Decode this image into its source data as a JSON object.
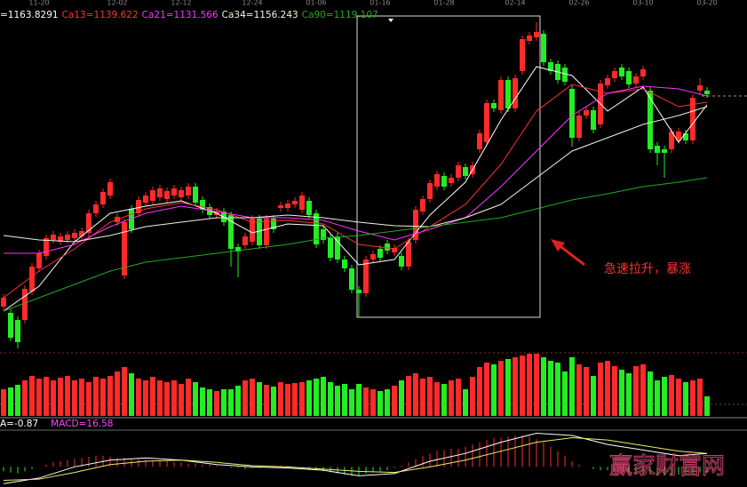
{
  "chart_data": [
    {
      "type": "candlestick",
      "categories": [
        null,
        null,
        null,
        null,
        null,
        "11-20",
        null,
        null,
        null,
        null,
        null,
        null,
        null,
        null,
        null,
        null,
        "12-02",
        null,
        null,
        null,
        null,
        null,
        null,
        null,
        null,
        "12-12",
        null,
        null,
        null,
        null,
        null,
        null,
        null,
        null,
        null,
        "12-24",
        null,
        null,
        null,
        null,
        null,
        null,
        null,
        null,
        "01-06",
        null,
        null,
        null,
        null,
        null,
        null,
        null,
        null,
        "01-16",
        null,
        null,
        null,
        null,
        null,
        null,
        null,
        null,
        "01-28",
        null,
        null,
        null,
        null,
        null,
        null,
        null,
        null,
        null,
        "02-14",
        null,
        null,
        null,
        null,
        null,
        null,
        null,
        null,
        "02-26",
        null,
        null,
        null,
        null,
        null,
        null,
        null,
        null,
        "03-10",
        null,
        null,
        null,
        null,
        null,
        null,
        null,
        null,
        "03-20"
      ],
      "ohlc": [
        [
          1037.5,
          1044.5,
          1035.5,
          1042.5
        ],
        [
          1034,
          1036,
          1018,
          1020
        ],
        [
          1030,
          1032,
          1014,
          1017.5
        ],
        [
          1030,
          1049.5,
          1028,
          1047.5
        ],
        [
          1046,
          1062,
          1044,
          1060
        ],
        [
          1059,
          1069.5,
          1057,
          1067.5
        ],
        [
          1066,
          1078,
          1064,
          1076
        ],
        [
          1075,
          1080,
          1073,
          1078
        ],
        [
          1074,
          1079,
          1072,
          1077
        ],
        [
          1075,
          1080,
          1073,
          1078
        ],
        [
          1076,
          1081,
          1074,
          1079
        ],
        [
          1077,
          1082,
          1075,
          1080
        ],
        [
          1079,
          1092,
          1077,
          1090
        ],
        [
          1090,
          1097,
          1088,
          1095
        ],
        [
          1095,
          1104,
          1093,
          1102
        ],
        [
          1100,
          1109.5,
          1098,
          1107.5
        ],
        [
          1085,
          1090,
          1083,
          1088
        ],
        [
          1055,
          1087,
          1053,
          1085
        ],
        [
          1092.5,
          1094.5,
          1079,
          1081
        ],
        [
          1090,
          1099.5,
          1088,
          1097.5
        ],
        [
          1096,
          1102,
          1094,
          1100
        ],
        [
          1097,
          1105,
          1095,
          1103
        ],
        [
          1099,
          1106,
          1097,
          1104
        ],
        [
          1098,
          1104.5,
          1096,
          1102.5
        ],
        [
          1100,
          1106,
          1098,
          1104
        ],
        [
          1099,
          1105,
          1097,
          1103
        ],
        [
          1100,
          1107,
          1098,
          1105
        ],
        [
          1105,
          1107,
          1094,
          1096
        ],
        [
          1097.5,
          1099.5,
          1090,
          1092
        ],
        [
          1093.5,
          1095.5,
          1087,
          1089
        ],
        [
          1089,
          1093,
          1087,
          1091
        ],
        [
          1091,
          1093,
          1083,
          1085
        ],
        [
          1089,
          1091,
          1060,
          1070
        ],
        [
          1071,
          1073,
          1054,
          1068.5
        ],
        [
          1072,
          1079,
          1070,
          1077
        ],
        [
          1074,
          1089,
          1072,
          1087
        ],
        [
          1087,
          1089,
          1070,
          1072
        ],
        [
          1072,
          1089,
          1070,
          1087
        ],
        [
          1087,
          1089,
          1079,
          1081
        ],
        [
          1093,
          1096.5,
          1091,
          1094.5
        ],
        [
          1093,
          1097.5,
          1091,
          1095.5
        ],
        [
          1095,
          1099,
          1093,
          1097
        ],
        [
          1092,
          1102,
          1090,
          1100
        ],
        [
          1097,
          1099,
          1087,
          1089
        ],
        [
          1090,
          1092,
          1070.5,
          1072.5
        ],
        [
          1081,
          1083,
          1073,
          1075
        ],
        [
          1076,
          1078,
          1063,
          1065
        ],
        [
          1077,
          1079,
          1062,
          1064
        ],
        [
          1064,
          1066,
          1057,
          1059
        ],
        [
          1059,
          1061,
          1045,
          1047
        ],
        [
          1047,
          1049,
          1032,
          1045
        ],
        [
          1045,
          1066,
          1043,
          1064
        ],
        [
          1064,
          1069,
          1062,
          1067
        ],
        [
          1070,
          1072,
          1063,
          1065
        ],
        [
          1073,
          1075,
          1067,
          1069
        ],
        [
          1068,
          1072.5,
          1066,
          1070.5
        ],
        [
          1066,
          1068,
          1058,
          1060
        ],
        [
          1060,
          1076,
          1058,
          1074
        ],
        [
          1075,
          1094,
          1073,
          1092
        ],
        [
          1091,
          1100,
          1089,
          1098
        ],
        [
          1098,
          1109,
          1096,
          1107
        ],
        [
          1105,
          1114,
          1103,
          1112
        ],
        [
          1111,
          1113,
          1103,
          1105
        ],
        [
          1107,
          1112,
          1105,
          1110
        ],
        [
          1110,
          1119,
          1108,
          1117
        ],
        [
          1116,
          1118,
          1109,
          1111
        ],
        [
          1112,
          1119,
          1110,
          1117
        ],
        [
          1126,
          1137,
          1124,
          1135
        ],
        [
          1130,
          1154,
          1128,
          1152
        ],
        [
          1152,
          1154,
          1147,
          1149
        ],
        [
          1148,
          1167,
          1146,
          1165
        ],
        [
          1165,
          1167,
          1147,
          1149
        ],
        [
          1149,
          1168,
          1147,
          1166
        ],
        [
          1170,
          1190,
          1168,
          1188
        ],
        [
          1187,
          1192,
          1185,
          1190
        ],
        [
          1189,
          1197.5,
          1187,
          1192
        ],
        [
          1191,
          1193,
          1173,
          1175
        ],
        [
          1175,
          1177,
          1168,
          1170
        ],
        [
          1174,
          1176,
          1163,
          1165
        ],
        [
          1172,
          1174,
          1162,
          1164
        ],
        [
          1160,
          1162,
          1127.5,
          1132.5
        ],
        [
          1132.5,
          1147,
          1130.5,
          1145
        ],
        [
          1145,
          1150,
          1143,
          1148
        ],
        [
          1148,
          1150,
          1135,
          1137
        ],
        [
          1140,
          1165,
          1138,
          1163
        ],
        [
          1162,
          1168,
          1160,
          1166
        ],
        [
          1166,
          1172,
          1164,
          1170
        ],
        [
          1172,
          1174,
          1165,
          1167
        ],
        [
          1170,
          1172,
          1160.5,
          1162.5
        ],
        [
          1163,
          1169,
          1161,
          1167
        ],
        [
          1167,
          1173,
          1165,
          1171
        ],
        [
          1159,
          1161,
          1124,
          1126
        ],
        [
          1128,
          1130,
          1117,
          1124
        ],
        [
          1126,
          1128,
          1110,
          1124
        ],
        [
          1126,
          1138,
          1124,
          1136
        ],
        [
          1131,
          1138,
          1129,
          1136
        ],
        [
          1135,
          1137,
          1129,
          1131
        ],
        [
          1131,
          1157,
          1129,
          1155
        ],
        [
          1159,
          1166,
          1157,
          1162
        ],
        [
          1159,
          1161,
          1155,
          1157
        ]
      ],
      "up_color": "#ff2a2a",
      "down_color": "#22ee22",
      "ylim": [
        1012.5,
        1202.5
      ],
      "lines": {
        "x": [
          0,
          5,
          10,
          15,
          20,
          25,
          30,
          35,
          40,
          45,
          50,
          55,
          60,
          65,
          70,
          75,
          80,
          85,
          90,
          95,
          99
        ],
        "series": [
          {
            "name": "=1163.8291",
            "color": "#ffffff",
            "values": [
              1035,
              1049,
              1074,
              1090,
              1094,
              1097,
              1090,
              1079,
              1084,
              1083,
              1061,
              1064,
              1089,
              1107.5,
              1142.5,
              1172.5,
              1167.5,
              1147.5,
              1161,
              1130,
              1151
            ]
          },
          {
            "name": "Ca13=1139.622",
            "color": "#ff3333",
            "values": [
              1042.5,
              1057.5,
              1070,
              1085,
              1092.5,
              1096,
              1092,
              1085,
              1086,
              1084,
              1072.5,
              1070,
              1082.5,
              1095,
              1117.5,
              1147.5,
              1162.5,
              1157.5,
              1160,
              1150,
              1152.5
            ]
          },
          {
            "name": "Ca21=1131.566",
            "color": "#ff33ff",
            "values": [
              1067.5,
              1067.5,
              1072.5,
              1082.5,
              1090,
              1094,
              1091,
              1087.5,
              1087.5,
              1086,
              1080,
              1075,
              1081,
              1087.5,
              1105,
              1125,
              1145,
              1157.5,
              1161.5,
              1160,
              1156
            ]
          },
          {
            "name": "Ca34=1156.243",
            "color": "#f4f4dc",
            "values": [
              1077.5,
              1075,
              1074,
              1077.5,
              1082.5,
              1085,
              1087.5,
              1087.5,
              1089,
              1087.5,
              1085,
              1083,
              1082.5,
              1087.5,
              1095,
              1110,
              1125,
              1132.5,
              1140,
              1145,
              1150
            ]
          },
          {
            "name": "Ca90=1119.107",
            "color": "#22aa22",
            "values": [
              1035,
              1042.5,
              1050,
              1057.5,
              1062.5,
              1065,
              1067.5,
              1070,
              1072.5,
              1076,
              1077.5,
              1080,
              1082.5,
              1085,
              1087.5,
              1092.5,
              1097.5,
              1101,
              1105,
              1107.5,
              1110
            ]
          }
        ]
      },
      "annotation": "急速拉升，暴涨",
      "watermark": "赢家财富网"
    },
    {
      "type": "bar",
      "values": [
        30,
        32,
        35,
        40,
        45,
        42,
        44,
        40,
        43,
        45,
        40,
        42,
        38,
        44,
        42,
        45,
        50,
        55,
        48,
        42,
        40,
        44,
        40,
        38,
        40,
        36,
        42,
        38,
        32,
        30,
        28,
        30,
        30,
        34,
        40,
        42,
        38,
        35,
        33,
        38,
        36,
        37,
        38,
        40,
        42,
        44,
        38,
        34,
        36,
        30,
        36,
        32,
        30,
        28,
        30,
        34,
        40,
        45,
        48,
        42,
        44,
        38,
        36,
        40,
        42,
        30,
        44,
        55,
        60,
        58,
        62,
        64,
        66,
        68,
        70,
        70,
        66,
        62,
        60,
        50,
        66,
        58,
        55,
        45,
        60,
        62,
        56,
        52,
        48,
        56,
        58,
        50,
        40,
        44,
        46,
        42,
        38,
        40,
        42,
        22
      ],
      "ylim": [
        0,
        70
      ]
    },
    {
      "type": "macd",
      "labels": [
        {
          "text": "A=-0.87",
          "color": "#ffffff"
        },
        {
          "text": "MACD=16.58",
          "color": "#ff44ff"
        }
      ],
      "hist": [
        -4,
        -5,
        -6,
        -4,
        -2,
        0,
        2,
        4,
        5,
        6,
        7,
        8,
        9,
        10,
        10,
        9,
        8,
        8,
        7,
        7,
        6,
        6,
        5,
        5,
        4,
        4,
        3,
        3,
        2,
        2,
        1,
        0,
        -1,
        -1,
        -2,
        -1,
        -1,
        0,
        1,
        1,
        1,
        0,
        -1,
        -2,
        -3,
        -4,
        -5,
        -6,
        -7,
        -8,
        -8,
        -6,
        -5,
        -4,
        -3,
        -1,
        1,
        4,
        7,
        10,
        12,
        14,
        15,
        16,
        16,
        18,
        20,
        22,
        24,
        26,
        26,
        27,
        28,
        28,
        27,
        25,
        22,
        18,
        14,
        10,
        5,
        2,
        0,
        -2,
        -3,
        -3,
        -4,
        -4,
        -5,
        -6,
        -6,
        -7,
        -8,
        -8,
        -8,
        -7,
        -6,
        -6,
        -5,
        -5
      ],
      "x": [
        0,
        5,
        10,
        15,
        20,
        25,
        30,
        35,
        40,
        45,
        50,
        55,
        60,
        65,
        70,
        75,
        80,
        85,
        90,
        95,
        99
      ],
      "series": [
        {
          "color": "#ffffff",
          "values": [
            -15,
            -10,
            0,
            6,
            8,
            6,
            2,
            0,
            -1,
            -3,
            -8,
            -6,
            5,
            12,
            22,
            30,
            28,
            20,
            15,
            10,
            12
          ]
        },
        {
          "color": "#eeee66",
          "values": [
            -12,
            -11,
            -5,
            2,
            5,
            6,
            4,
            1,
            0,
            -2,
            -4,
            -5,
            0,
            6,
            14,
            22,
            26,
            24,
            19,
            14,
            12
          ]
        }
      ],
      "ylim": [
        -18,
        32
      ]
    }
  ]
}
